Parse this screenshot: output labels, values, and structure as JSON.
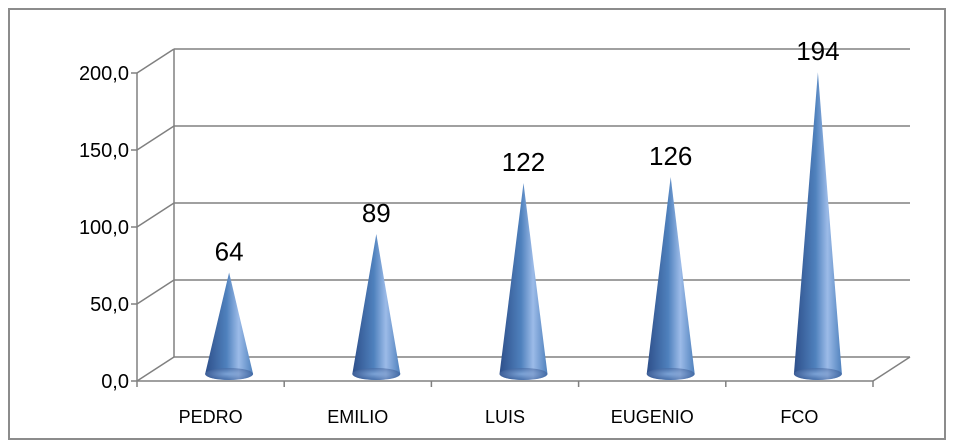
{
  "chart_data": {
    "type": "bar",
    "shape": "cone-3d",
    "categories": [
      "PEDRO",
      "EMILIO",
      "LUIS",
      "EUGENIO",
      "FCO"
    ],
    "values": [
      64,
      89,
      122,
      126,
      194
    ],
    "data_labels": [
      "64",
      "89",
      "122",
      "126",
      "194"
    ],
    "y_ticks": [
      {
        "value": 0,
        "label": "0,0"
      },
      {
        "value": 50,
        "label": "50,0"
      },
      {
        "value": 100,
        "label": "100,0"
      },
      {
        "value": 150,
        "label": "150,0"
      },
      {
        "value": 200,
        "label": "200,0"
      }
    ],
    "ylim": [
      0,
      200
    ],
    "grid": true,
    "legend": "none",
    "colors": {
      "cone_dark": "#2e4f8a",
      "cone_mid": "#4f81bd",
      "cone_light": "#9cbbe8",
      "gridline": "#808080",
      "frame": "#8c8c8c"
    }
  }
}
